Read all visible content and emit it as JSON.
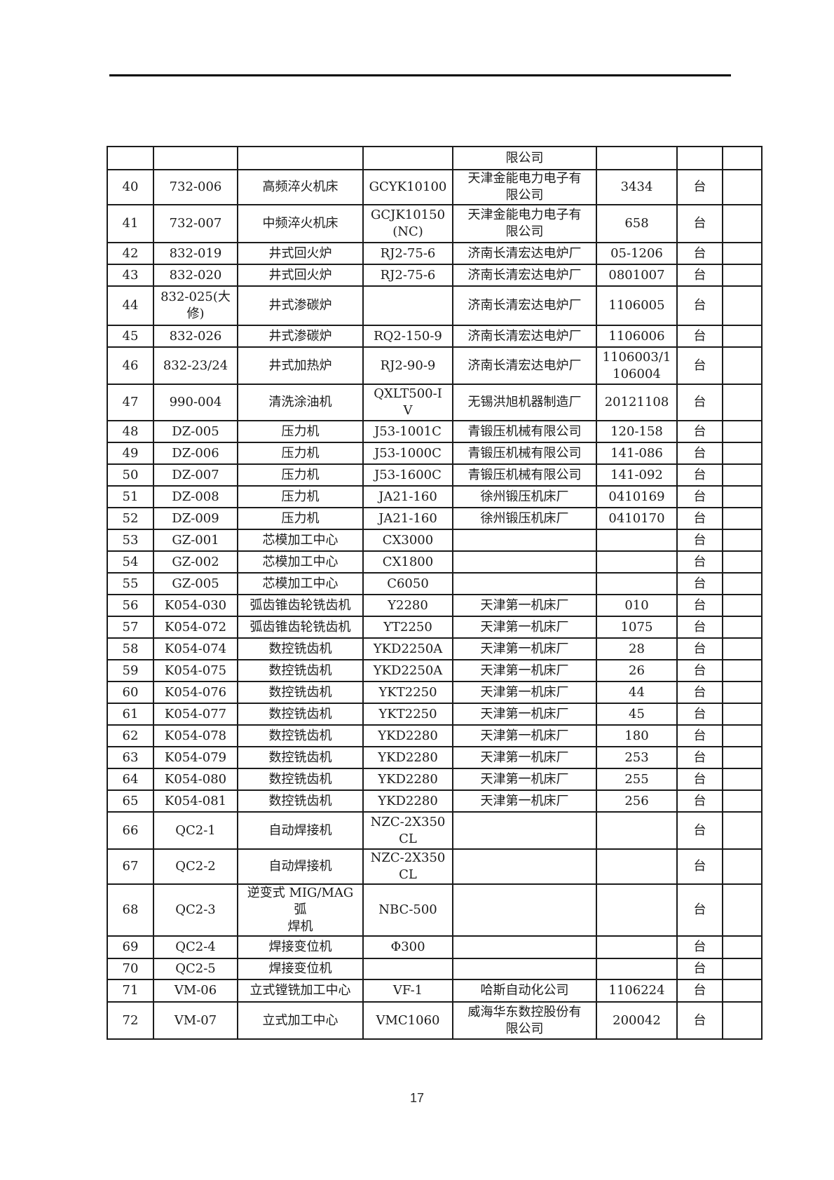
{
  "page": {
    "number": "17"
  },
  "table": {
    "unit_label": "台",
    "rows": [
      {
        "no": "",
        "code": "",
        "name": "",
        "model": "",
        "manufacturer": "限公司",
        "serial": "",
        "unit": "",
        "extra": ""
      },
      {
        "no": "40",
        "code": "732-006",
        "name": "高频淬火机床",
        "model": "GCYK10100",
        "manufacturer": "天津金能电力电子有\n限公司",
        "serial": "3434",
        "unit": "台",
        "extra": ""
      },
      {
        "no": "41",
        "code": "732-007",
        "name": "中频淬火机床",
        "model": "GCJK10150\n(NC)",
        "manufacturer": "天津金能电力电子有\n限公司",
        "serial": "658",
        "unit": "台",
        "extra": ""
      },
      {
        "no": "42",
        "code": "832-019",
        "name": "井式回火炉",
        "model": "RJ2-75-6",
        "manufacturer": "济南长清宏达电炉厂",
        "serial": "05-1206",
        "unit": "台",
        "extra": ""
      },
      {
        "no": "43",
        "code": "832-020",
        "name": "井式回火炉",
        "model": "RJ2-75-6",
        "manufacturer": "济南长清宏达电炉厂",
        "serial": "0801007",
        "unit": "台",
        "extra": ""
      },
      {
        "no": "44",
        "code": "832-025(大\n修)",
        "name": "井式渗碳炉",
        "model": "",
        "manufacturer": "济南长清宏达电炉厂",
        "serial": "1106005",
        "unit": "台",
        "extra": ""
      },
      {
        "no": "45",
        "code": "832-026",
        "name": "井式渗碳炉",
        "model": "RQ2-150-9",
        "manufacturer": "济南长清宏达电炉厂",
        "serial": "1106006",
        "unit": "台",
        "extra": ""
      },
      {
        "no": "46",
        "code": "832-23/24",
        "name": "井式加热炉",
        "model": "RJ2-90-9",
        "manufacturer": "济南长清宏达电炉厂",
        "serial": "1106003/1\n106004",
        "unit": "台",
        "extra": ""
      },
      {
        "no": "47",
        "code": "990-004",
        "name": "清洗涂油机",
        "model": "QXLT500-I\nV",
        "manufacturer": "无锡洪旭机器制造厂",
        "serial": "20121108",
        "unit": "台",
        "extra": ""
      },
      {
        "no": "48",
        "code": "DZ-005",
        "name": "压力机",
        "model": "J53-1001C",
        "manufacturer": "青锻压机械有限公司",
        "serial": "120-158",
        "unit": "台",
        "extra": ""
      },
      {
        "no": "49",
        "code": "DZ-006",
        "name": "压力机",
        "model": "J53-1000C",
        "manufacturer": "青锻压机械有限公司",
        "serial": "141-086",
        "unit": "台",
        "extra": ""
      },
      {
        "no": "50",
        "code": "DZ-007",
        "name": "压力机",
        "model": "J53-1600C",
        "manufacturer": "青锻压机械有限公司",
        "serial": "141-092",
        "unit": "台",
        "extra": ""
      },
      {
        "no": "51",
        "code": "DZ-008",
        "name": "压力机",
        "model": "JA21-160",
        "manufacturer": "徐州锻压机床厂",
        "serial": "0410169",
        "unit": "台",
        "extra": ""
      },
      {
        "no": "52",
        "code": "DZ-009",
        "name": "压力机",
        "model": "JA21-160",
        "manufacturer": "徐州锻压机床厂",
        "serial": "0410170",
        "unit": "台",
        "extra": ""
      },
      {
        "no": "53",
        "code": "GZ-001",
        "name": "芯模加工中心",
        "model": "CX3000",
        "manufacturer": "",
        "serial": "",
        "unit": "台",
        "extra": ""
      },
      {
        "no": "54",
        "code": "GZ-002",
        "name": "芯模加工中心",
        "model": "CX1800",
        "manufacturer": "",
        "serial": "",
        "unit": "台",
        "extra": ""
      },
      {
        "no": "55",
        "code": "GZ-005",
        "name": "芯模加工中心",
        "model": "C6050",
        "manufacturer": "",
        "serial": "",
        "unit": "台",
        "extra": ""
      },
      {
        "no": "56",
        "code": "K054-030",
        "name": "弧齿锥齿轮铣齿机",
        "model": "Y2280",
        "manufacturer": "天津第一机床厂",
        "serial": "010",
        "unit": "台",
        "extra": ""
      },
      {
        "no": "57",
        "code": "K054-072",
        "name": "弧齿锥齿轮铣齿机",
        "model": "YT2250",
        "manufacturer": "天津第一机床厂",
        "serial": "1075",
        "unit": "台",
        "extra": ""
      },
      {
        "no": "58",
        "code": "K054-074",
        "name": "数控铣齿机",
        "model": "YKD2250A",
        "manufacturer": "天津第一机床厂",
        "serial": "28",
        "unit": "台",
        "extra": ""
      },
      {
        "no": "59",
        "code": "K054-075",
        "name": "数控铣齿机",
        "model": "YKD2250A",
        "manufacturer": "天津第一机床厂",
        "serial": "26",
        "unit": "台",
        "extra": ""
      },
      {
        "no": "60",
        "code": "K054-076",
        "name": "数控铣齿机",
        "model": "YKT2250",
        "manufacturer": "天津第一机床厂",
        "serial": "44",
        "unit": "台",
        "extra": ""
      },
      {
        "no": "61",
        "code": "K054-077",
        "name": "数控铣齿机",
        "model": "YKT2250",
        "manufacturer": "天津第一机床厂",
        "serial": "45",
        "unit": "台",
        "extra": ""
      },
      {
        "no": "62",
        "code": "K054-078",
        "name": "数控铣齿机",
        "model": "YKD2280",
        "manufacturer": "天津第一机床厂",
        "serial": "180",
        "unit": "台",
        "extra": ""
      },
      {
        "no": "63",
        "code": "K054-079",
        "name": "数控铣齿机",
        "model": "YKD2280",
        "manufacturer": "天津第一机床厂",
        "serial": "253",
        "unit": "台",
        "extra": ""
      },
      {
        "no": "64",
        "code": "K054-080",
        "name": "数控铣齿机",
        "model": "YKD2280",
        "manufacturer": "天津第一机床厂",
        "serial": "255",
        "unit": "台",
        "extra": ""
      },
      {
        "no": "65",
        "code": "K054-081",
        "name": "数控铣齿机",
        "model": "YKD2280",
        "manufacturer": "天津第一机床厂",
        "serial": "256",
        "unit": "台",
        "extra": ""
      },
      {
        "no": "66",
        "code": "QC2-1",
        "name": "自动焊接机",
        "model": "NZC-2X350\nCL",
        "manufacturer": "",
        "serial": "",
        "unit": "台",
        "extra": ""
      },
      {
        "no": "67",
        "code": "QC2-2",
        "name": "自动焊接机",
        "model": "NZC-2X350\nCL",
        "manufacturer": "",
        "serial": "",
        "unit": "台",
        "extra": ""
      },
      {
        "no": "68",
        "code": "QC2-3",
        "name": "逆变式 MIG/MAG 弧\n焊机",
        "model": "NBC-500",
        "manufacturer": "",
        "serial": "",
        "unit": "台",
        "extra": ""
      },
      {
        "no": "69",
        "code": "QC2-4",
        "name": "焊接变位机",
        "model": "Φ300",
        "manufacturer": "",
        "serial": "",
        "unit": "台",
        "extra": ""
      },
      {
        "no": "70",
        "code": "QC2-5",
        "name": "焊接变位机",
        "model": "",
        "manufacturer": "",
        "serial": "",
        "unit": "台",
        "extra": ""
      },
      {
        "no": "71",
        "code": "VM-06",
        "name": "立式镗铣加工中心",
        "model": "VF-1",
        "manufacturer": "哈斯自动化公司",
        "serial": "1106224",
        "unit": "台",
        "extra": ""
      },
      {
        "no": "72",
        "code": "VM-07",
        "name": "立式加工中心",
        "model": "VMC1060",
        "manufacturer": "威海华东数控股份有\n限公司",
        "serial": "200042",
        "unit": "台",
        "extra": ""
      }
    ]
  }
}
